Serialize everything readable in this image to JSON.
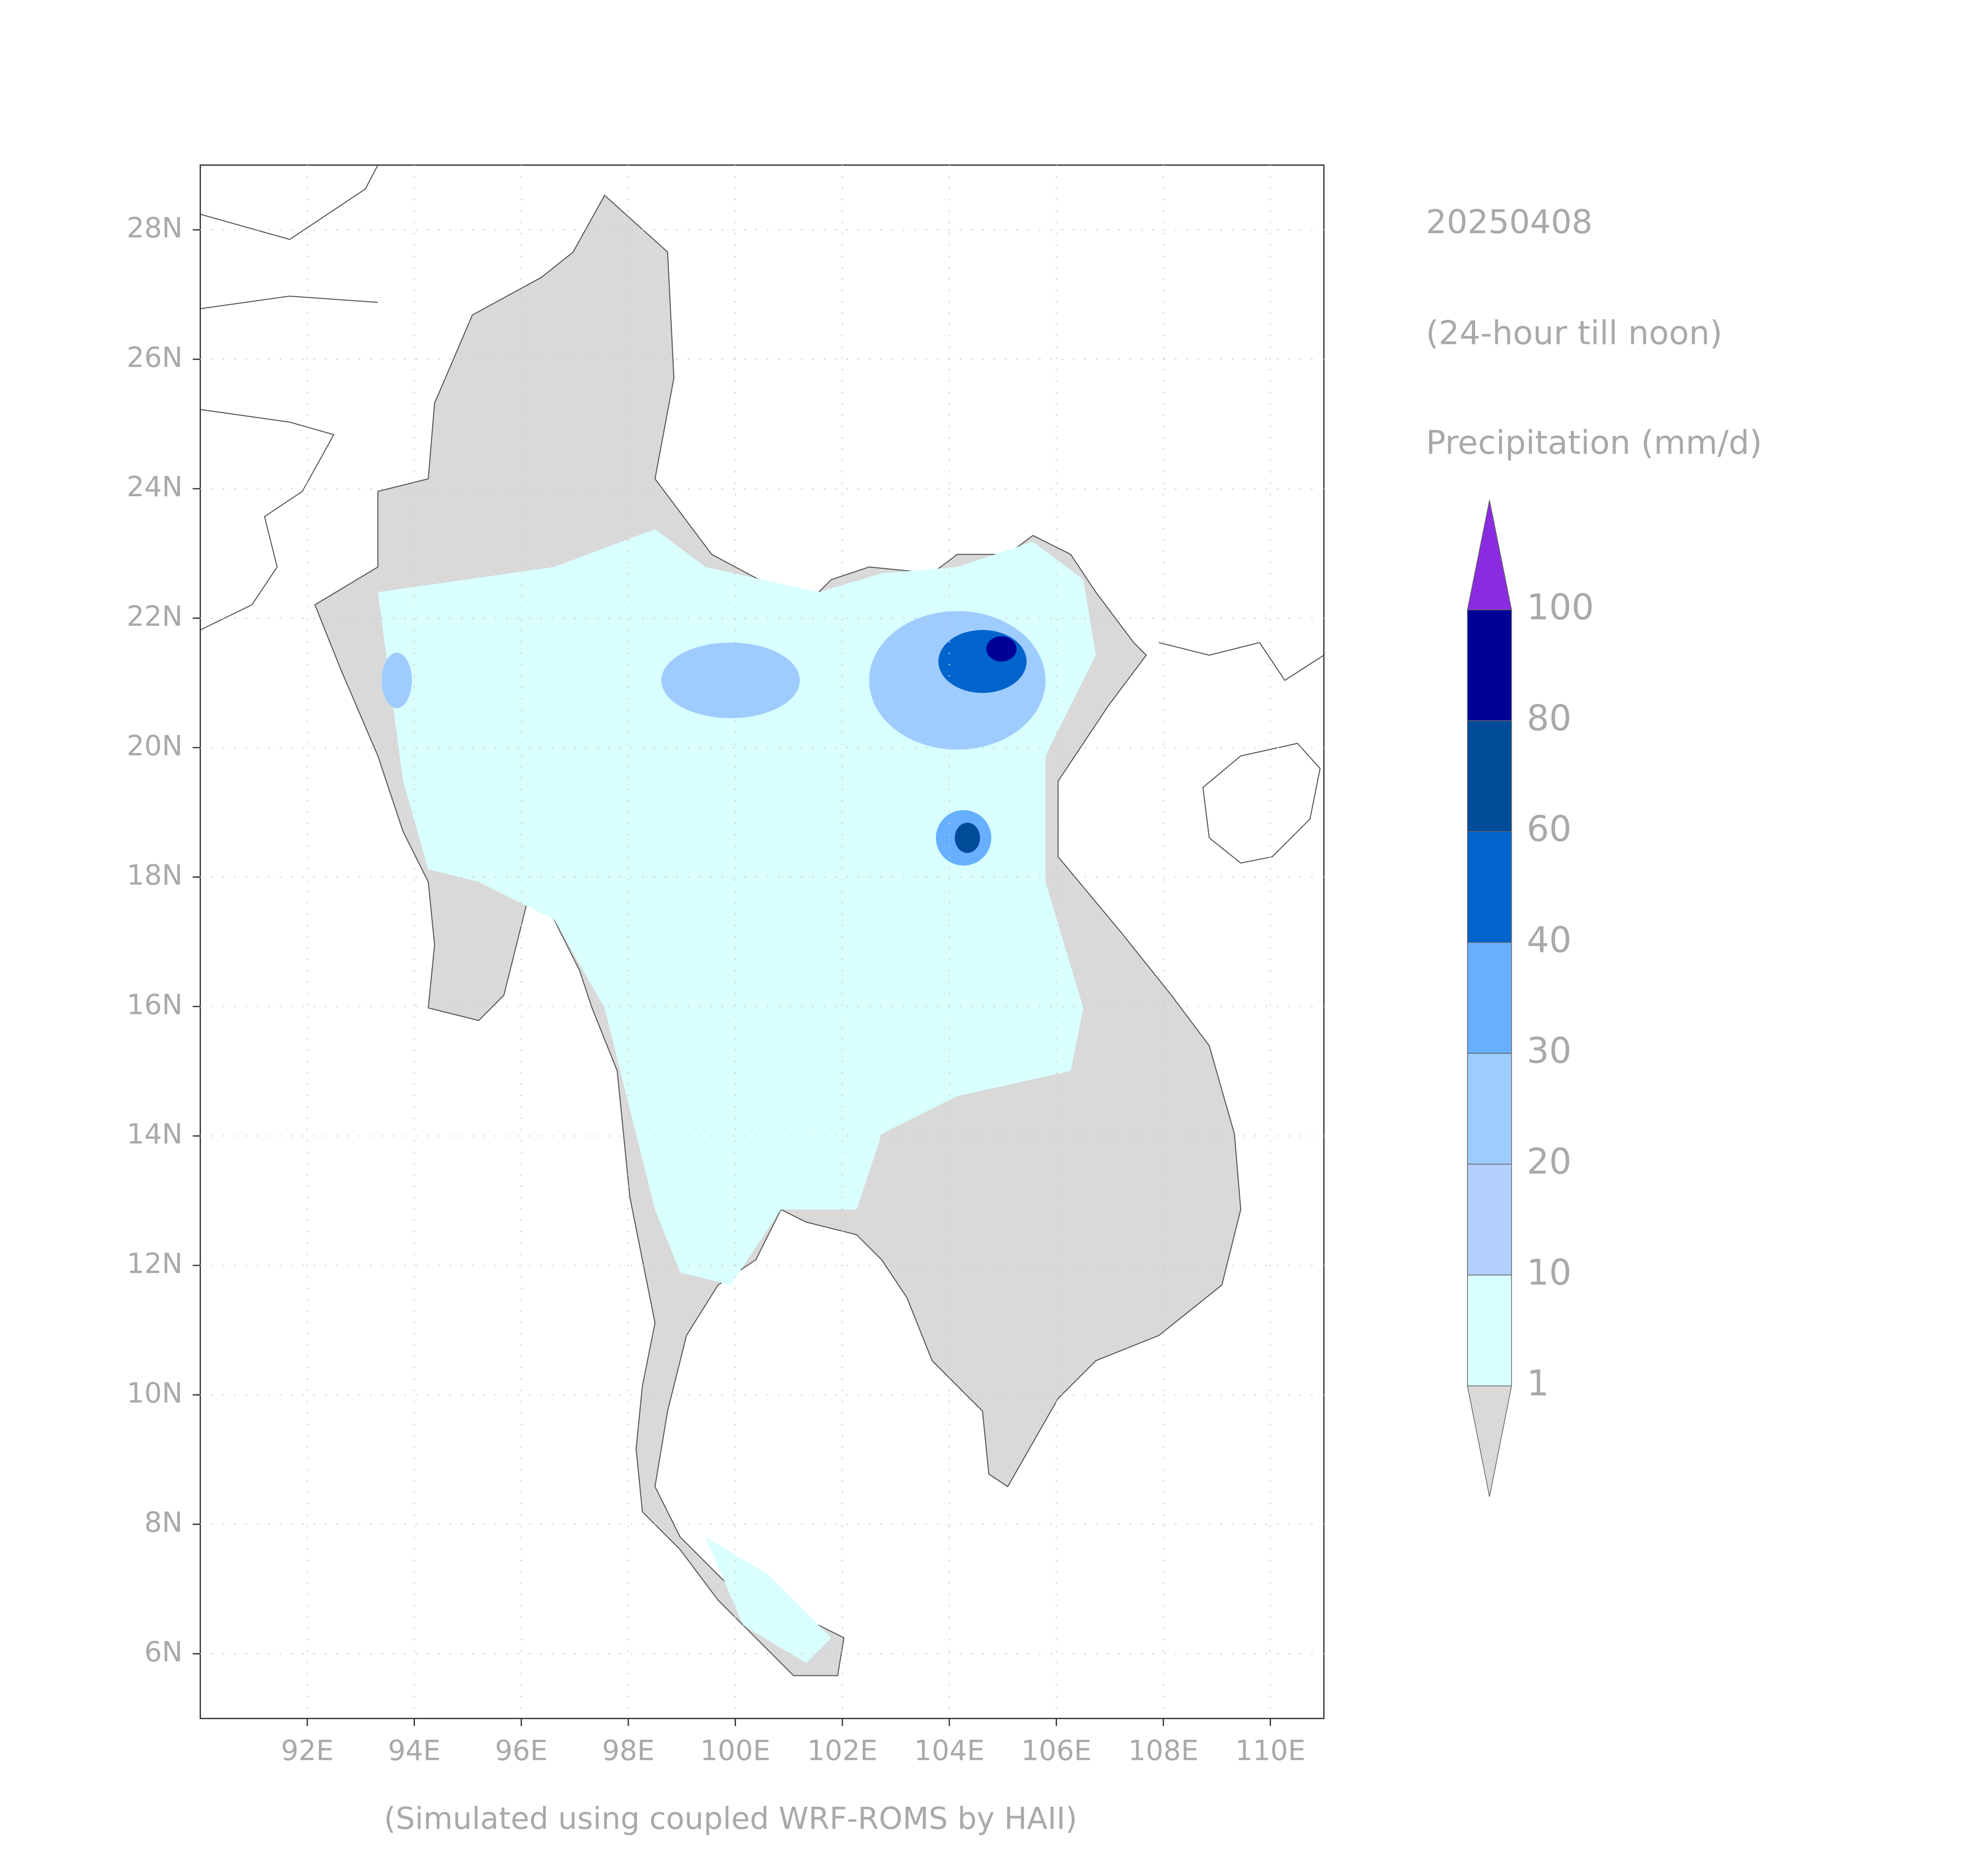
{
  "map": {
    "title": "20250408",
    "subtitle": "(24-hour till noon)",
    "variable": "Precipitation (mm/d)",
    "footer": "(Simulated using coupled WRF-ROMS by HAII)",
    "xlim": [
      90,
      111
    ],
    "ylim": [
      5,
      29
    ],
    "xticks": [
      {
        "value": 92,
        "label": "92E"
      },
      {
        "value": 94,
        "label": "94E"
      },
      {
        "value": 96,
        "label": "96E"
      },
      {
        "value": 98,
        "label": "98E"
      },
      {
        "value": 100,
        "label": "100E"
      },
      {
        "value": 102,
        "label": "102E"
      },
      {
        "value": 104,
        "label": "104E"
      },
      {
        "value": 106,
        "label": "106E"
      },
      {
        "value": 108,
        "label": "108E"
      },
      {
        "value": 110,
        "label": "110E"
      }
    ],
    "yticks": [
      {
        "value": 6,
        "label": "6N"
      },
      {
        "value": 8,
        "label": "8N"
      },
      {
        "value": 10,
        "label": "10N"
      },
      {
        "value": 12,
        "label": "12N"
      },
      {
        "value": 14,
        "label": "14N"
      },
      {
        "value": 16,
        "label": "16N"
      },
      {
        "value": 18,
        "label": "18N"
      },
      {
        "value": 20,
        "label": "20N"
      },
      {
        "value": 22,
        "label": "22N"
      },
      {
        "value": 24,
        "label": "24N"
      },
      {
        "value": 26,
        "label": "26N"
      },
      {
        "value": 28,
        "label": "28N"
      }
    ],
    "grid": true,
    "colorbar": {
      "levels": [
        1,
        10,
        20,
        30,
        40,
        60,
        80,
        100
      ],
      "colors": [
        "#d9d9d9",
        "#d9ffff",
        "#b4d0ff",
        "#9fccff",
        "#66b0ff",
        "#0064cc",
        "#004c99",
        "#000099",
        "#8a2be2"
      ]
    }
  }
}
